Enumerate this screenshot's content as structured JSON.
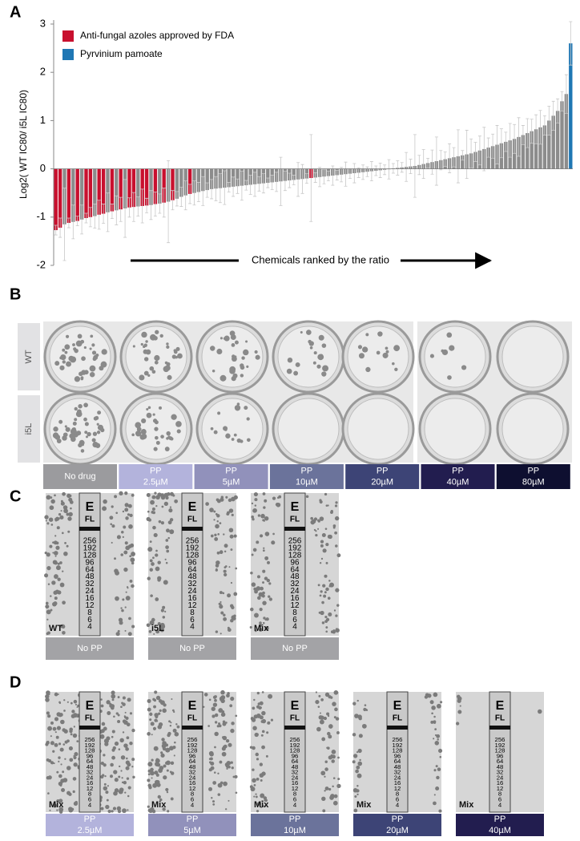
{
  "chart_data": {
    "type": "bar",
    "y_label": "Log2( WT IC80/ i5L IC80)",
    "x_label": "Chemicals ranked by the ratio",
    "ylim": [
      -2,
      3
    ],
    "yticks": [
      -2,
      -1,
      0,
      1,
      2,
      3
    ],
    "legend": [
      {
        "label": "Anti-fungal azoles approved by FDA",
        "color": "#c8102e"
      },
      {
        "label": "Pyrvinium pamoate",
        "color": "#1f77b4"
      }
    ],
    "values": [
      -1.27,
      -1.22,
      -1.15,
      -1.12,
      -1.1,
      -1.08,
      -1.05,
      -1.02,
      -1.0,
      -0.98,
      -0.95,
      -0.93,
      -0.9,
      -0.88,
      -0.86,
      -0.84,
      -0.82,
      -0.8,
      -0.79,
      -0.78,
      -0.77,
      -0.76,
      -0.75,
      -0.73,
      -0.72,
      -0.7,
      -0.68,
      -0.65,
      -0.62,
      -0.58,
      -0.55,
      -0.52,
      -0.5,
      -0.48,
      -0.46,
      -0.44,
      -0.42,
      -0.41,
      -0.4,
      -0.39,
      -0.38,
      -0.37,
      -0.36,
      -0.35,
      -0.34,
      -0.33,
      -0.32,
      -0.31,
      -0.3,
      -0.29,
      -0.28,
      -0.27,
      -0.26,
      -0.25,
      -0.24,
      -0.23,
      -0.22,
      -0.21,
      -0.2,
      -0.19,
      -0.18,
      -0.17,
      -0.16,
      -0.15,
      -0.14,
      -0.13,
      -0.12,
      -0.11,
      -0.1,
      -0.09,
      -0.08,
      -0.07,
      -0.06,
      -0.05,
      -0.04,
      -0.03,
      -0.02,
      -0.01,
      0.01,
      0.02,
      0.03,
      0.04,
      0.05,
      0.06,
      0.08,
      0.1,
      0.12,
      0.14,
      0.16,
      0.18,
      0.2,
      0.22,
      0.24,
      0.26,
      0.28,
      0.3,
      0.32,
      0.35,
      0.38,
      0.41,
      0.44,
      0.47,
      0.5,
      0.53,
      0.56,
      0.59,
      0.62,
      0.66,
      0.7,
      0.74,
      0.78,
      0.82,
      0.86,
      0.9,
      1.0,
      1.1,
      1.2,
      1.4,
      1.55,
      2.6
    ],
    "errors": [
      0.1,
      0.2,
      0.75,
      0.1,
      0.35,
      0.1,
      0.3,
      0.1,
      0.2,
      0.25,
      0.3,
      0.2,
      0.4,
      0.15,
      0.3,
      0.25,
      0.6,
      0.2,
      0.3,
      0.2,
      0.35,
      0.15,
      0.3,
      0.25,
      0.2,
      0.3,
      0.85,
      0.2,
      0.15,
      0.2,
      0.3,
      0.2,
      0.25,
      0.2,
      0.3,
      0.15,
      0.2,
      0.25,
      0.3,
      0.35,
      0.1,
      0.2,
      0.15,
      0.3,
      0.1,
      0.2,
      0.25,
      0.15,
      0.2,
      0.1,
      0.15,
      0.2,
      0.5,
      0.2,
      0.15,
      0.1,
      0.35,
      0.3,
      0.1,
      0.9,
      0.1,
      0.2,
      0.15,
      0.1,
      0.2,
      0.1,
      0.15,
      0.25,
      0.1,
      0.2,
      0.1,
      0.15,
      0.1,
      0.2,
      0.1,
      0.15,
      0.1,
      0.2,
      0.1,
      0.15,
      0.1,
      0.3,
      0.15,
      0.65,
      0.2,
      0.3,
      0.1,
      0.25,
      0.5,
      0.2,
      0.15,
      0.3,
      0.2,
      0.55,
      0.1,
      0.5,
      0.3,
      0.2,
      0.3,
      0.45,
      0.2,
      0.25,
      0.4,
      0.3,
      0.2,
      0.35,
      0.3,
      0.4,
      0.2,
      0.3,
      0.25,
      0.3,
      0.35,
      0.2,
      0.3,
      0.3,
      0.25,
      0.2,
      0.4,
      0.45
    ],
    "bar_colors": [
      "#c8102e",
      "#c8102e",
      "#8c8c8c",
      "#c8102e",
      "#8c8c8c",
      "#c8102e",
      "#8c8c8c",
      "#c8102e",
      "#c8102e",
      "#8c8c8c",
      "#c8102e",
      "#c8102e",
      "#8c8c8c",
      "#c8102e",
      "#8c8c8c",
      "#c8102e",
      "#8c8c8c",
      "#c8102e",
      "#c8102e",
      "#8c8c8c",
      "#c8102e",
      "#c8102e",
      "#8c8c8c",
      "#c8102e",
      "#8c8c8c",
      "#c8102e",
      "#8c8c8c",
      "#c8102e",
      "#8c8c8c",
      "#8c8c8c",
      "#8c8c8c",
      "#c8102e",
      "#8c8c8c",
      "#8c8c8c",
      "#8c8c8c",
      "#8c8c8c",
      "#8c8c8c",
      "#8c8c8c",
      "#8c8c8c",
      "#8c8c8c",
      "#8c8c8c",
      "#8c8c8c",
      "#8c8c8c",
      "#8c8c8c",
      "#8c8c8c",
      "#8c8c8c",
      "#8c8c8c",
      "#8c8c8c",
      "#8c8c8c",
      "#8c8c8c",
      "#8c8c8c",
      "#8c8c8c",
      "#8c8c8c",
      "#8c8c8c",
      "#8c8c8c",
      "#8c8c8c",
      "#8c8c8c",
      "#8c8c8c",
      "#8c8c8c",
      "#c8102e",
      "#8c8c8c",
      "#8c8c8c",
      "#8c8c8c",
      "#8c8c8c",
      "#8c8c8c",
      "#8c8c8c",
      "#8c8c8c",
      "#8c8c8c",
      "#8c8c8c",
      "#8c8c8c",
      "#8c8c8c",
      "#8c8c8c",
      "#8c8c8c",
      "#8c8c8c",
      "#8c8c8c",
      "#8c8c8c",
      "#8c8c8c",
      "#8c8c8c",
      "#8c8c8c",
      "#8c8c8c",
      "#8c8c8c",
      "#8c8c8c",
      "#8c8c8c",
      "#8c8c8c",
      "#8c8c8c",
      "#8c8c8c",
      "#8c8c8c",
      "#8c8c8c",
      "#8c8c8c",
      "#8c8c8c",
      "#8c8c8c",
      "#8c8c8c",
      "#8c8c8c",
      "#8c8c8c",
      "#8c8c8c",
      "#8c8c8c",
      "#8c8c8c",
      "#8c8c8c",
      "#8c8c8c",
      "#8c8c8c",
      "#8c8c8c",
      "#8c8c8c",
      "#8c8c8c",
      "#8c8c8c",
      "#8c8c8c",
      "#8c8c8c",
      "#8c8c8c",
      "#8c8c8c",
      "#8c8c8c",
      "#8c8c8c",
      "#8c8c8c",
      "#8c8c8c",
      "#8c8c8c",
      "#8c8c8c",
      "#8c8c8c",
      "#8c8c8c",
      "#8c8c8c",
      "#8c8c8c",
      "#8c8c8c",
      "#1f77b4"
    ]
  },
  "panels": {
    "a": "A",
    "b": "B",
    "c": "C",
    "d": "D"
  },
  "panel_b": {
    "rows": [
      "WT",
      "i5L"
    ],
    "conditions": [
      {
        "name": "No drug",
        "color": "#9b9b9e"
      },
      {
        "name": "PP",
        "dose": "2.5µM",
        "color": "#b3b3dc"
      },
      {
        "name": "PP",
        "dose": "5µM",
        "color": "#9191bb"
      },
      {
        "name": "PP",
        "dose": "10µM",
        "color": "#6b739b"
      },
      {
        "name": "PP",
        "dose": "20µM",
        "color": "#3d4476"
      },
      {
        "name": "PP",
        "dose": "40µM",
        "color": "#221d4f"
      },
      {
        "name": "PP",
        "dose": "80µM",
        "color": "#0e0f30"
      }
    ]
  },
  "panel_c": [
    {
      "strain": "WT",
      "name": "No PP",
      "color": "#a3a3a6"
    },
    {
      "strain": "i5L",
      "name": "No PP",
      "color": "#a3a3a6"
    },
    {
      "strain": "Mix",
      "name": "No PP",
      "color": "#a3a3a6"
    }
  ],
  "panel_d": [
    {
      "strain": "Mix",
      "name": "PP",
      "dose": "2.5µM",
      "color": "#b3b3dc"
    },
    {
      "strain": "Mix",
      "name": "PP",
      "dose": "5µM",
      "color": "#9191bb"
    },
    {
      "strain": "Mix",
      "name": "PP",
      "dose": "10µM",
      "color": "#6b739b"
    },
    {
      "strain": "Mix",
      "name": "PP",
      "dose": "20µM",
      "color": "#3d4476"
    },
    {
      "strain": "Mix",
      "name": "PP",
      "dose": "40µM",
      "color": "#221d4f"
    }
  ],
  "strip": {
    "brand": "E",
    "code": "FL",
    "scale": [
      "256",
      "192",
      "128",
      "96",
      "64",
      "48",
      "32",
      "24",
      "16",
      "12",
      "8",
      "6",
      "4"
    ]
  }
}
